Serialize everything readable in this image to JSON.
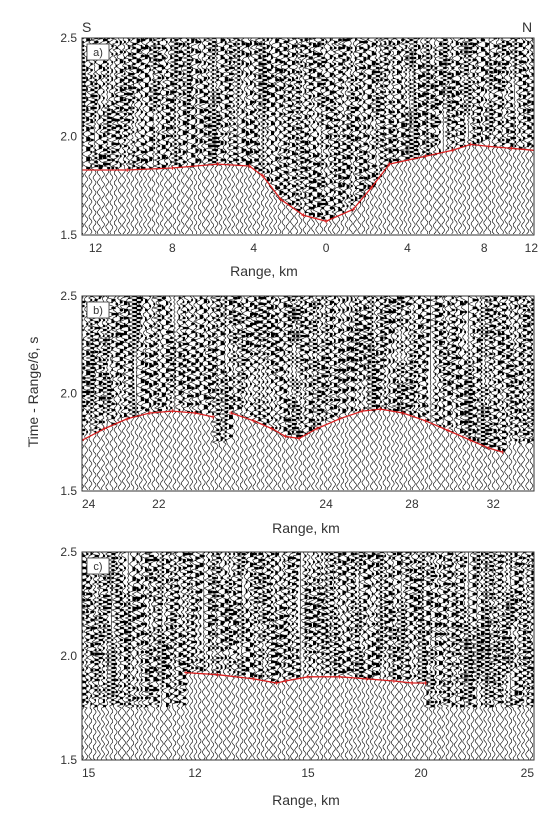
{
  "ylabel": "Time - Range/6, s",
  "colors": {
    "pick": "#d81e1e",
    "wiggle": "#000000",
    "frame": "#333333"
  },
  "chart_data": [
    {
      "type": "seismic-record",
      "panel_label": "a)",
      "corner_left": "S",
      "corner_right": "N",
      "xlabel": "Range, km",
      "x_ticks": [
        "12",
        "8",
        "4",
        "0",
        "4",
        "8",
        "12"
      ],
      "x_tick_pos": [
        0.03,
        0.2,
        0.38,
        0.54,
        0.72,
        0.89,
        1.06
      ],
      "y_ticks": [
        "2.5",
        "2.0",
        "1.5"
      ],
      "ylim": [
        1.5,
        2.5
      ],
      "pick_segments": [
        [
          [
            0.0,
            1.83
          ],
          [
            0.1,
            1.83
          ],
          [
            0.2,
            1.84
          ],
          [
            0.3,
            1.86
          ],
          [
            0.37,
            1.85
          ],
          [
            0.4,
            1.8
          ],
          [
            0.44,
            1.68
          ],
          [
            0.49,
            1.6
          ],
          [
            0.54,
            1.57
          ],
          [
            0.6,
            1.63
          ],
          [
            0.64,
            1.74
          ],
          [
            0.68,
            1.86
          ],
          [
            0.76,
            1.9
          ],
          [
            0.82,
            1.93
          ],
          [
            0.86,
            1.96
          ],
          [
            0.9,
            1.95
          ],
          [
            0.95,
            1.94
          ],
          [
            1.0,
            1.93
          ],
          [
            1.04,
            1.95
          ],
          [
            1.08,
            1.97
          ],
          [
            1.12,
            1.99
          ],
          [
            1.16,
            1.99
          ],
          [
            1.2,
            1.97
          ],
          [
            1.25,
            1.95
          ],
          [
            1.29,
            1.94
          ],
          [
            1.33,
            1.95
          ],
          [
            1.38,
            1.96
          ],
          [
            1.42,
            1.95
          ]
        ]
      ]
    },
    {
      "type": "seismic-record",
      "panel_label": "b)",
      "corner_left": "",
      "corner_right": "",
      "xlabel": "Range, km",
      "x_ticks": [
        "24",
        "22",
        "24",
        "28",
        "32"
      ],
      "x_tick_pos": [
        0.0,
        0.17,
        0.54,
        0.73,
        0.91
      ],
      "y_ticks": [
        "2.5",
        "2.0",
        "1.5"
      ],
      "ylim": [
        1.5,
        2.5
      ],
      "pick_segments": [
        [
          [
            0.0,
            1.76
          ],
          [
            0.05,
            1.82
          ],
          [
            0.1,
            1.87
          ],
          [
            0.15,
            1.9
          ],
          [
            0.2,
            1.91
          ],
          [
            0.25,
            1.9
          ],
          [
            0.29,
            1.88
          ]
        ],
        [
          [
            0.33,
            1.9
          ],
          [
            0.38,
            1.86
          ],
          [
            0.42,
            1.82
          ],
          [
            0.45,
            1.78
          ],
          [
            0.48,
            1.77
          ],
          [
            0.52,
            1.82
          ],
          [
            0.57,
            1.87
          ],
          [
            0.62,
            1.91
          ],
          [
            0.66,
            1.92
          ],
          [
            0.71,
            1.9
          ],
          [
            0.76,
            1.86
          ],
          [
            0.81,
            1.81
          ],
          [
            0.86,
            1.76
          ],
          [
            0.9,
            1.72
          ],
          [
            0.93,
            1.7
          ]
        ]
      ]
    },
    {
      "type": "seismic-record",
      "panel_label": "c)",
      "corner_left": "",
      "corner_right": "",
      "xlabel": "Range, km",
      "x_ticks": [
        "15",
        "12",
        "15",
        "20",
        "25"
      ],
      "x_tick_pos": [
        0.0,
        0.25,
        0.5,
        0.75,
        1.0
      ],
      "y_ticks": [
        "2.5",
        "2.0",
        "1.5"
      ],
      "ylim": [
        1.5,
        2.5
      ],
      "pick_segments": [
        [
          [
            0.23,
            1.92
          ],
          [
            0.3,
            1.91
          ],
          [
            0.38,
            1.89
          ],
          [
            0.43,
            1.87
          ],
          [
            0.45,
            1.88
          ],
          [
            0.5,
            1.9
          ],
          [
            0.57,
            1.9
          ],
          [
            0.63,
            1.89
          ],
          [
            0.69,
            1.88
          ],
          [
            0.73,
            1.87
          ],
          [
            0.76,
            1.87
          ]
        ]
      ]
    }
  ]
}
